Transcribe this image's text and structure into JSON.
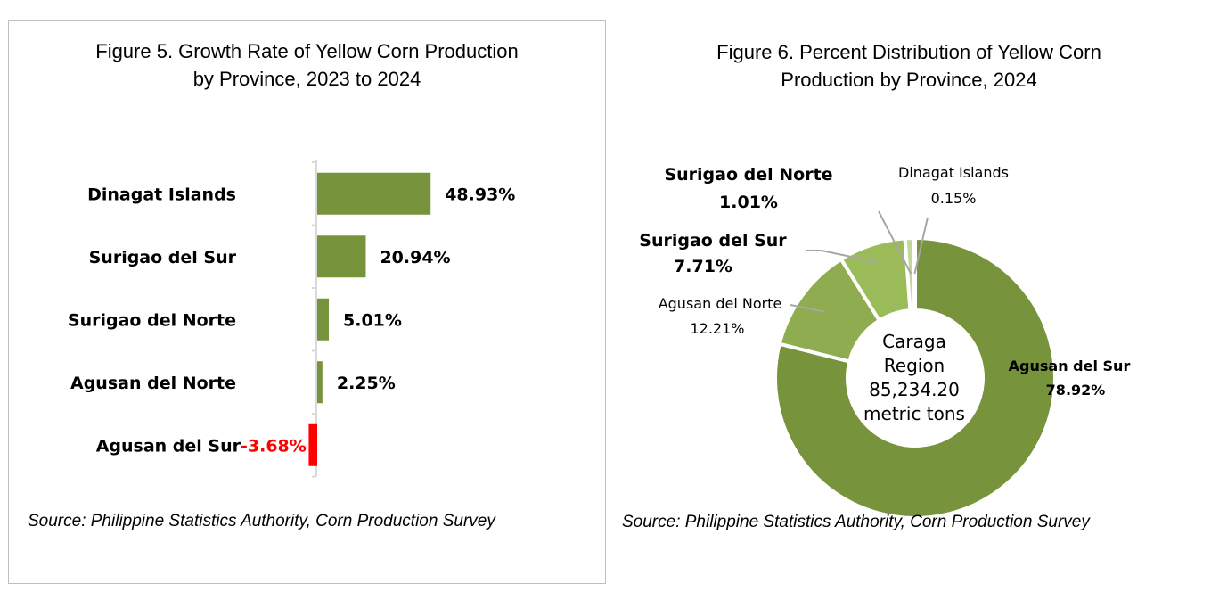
{
  "chart_data": [
    {
      "type": "bar",
      "orientation": "horizontal",
      "title_lines": [
        "Figure 5. Growth Rate of Yellow Corn Production",
        "by Province, 2023 to 2024"
      ],
      "categories": [
        "Dinagat Islands",
        "Surigao del Sur",
        "Surigao del Norte",
        "Agusan del Norte",
        "Agusan del Sur"
      ],
      "values": [
        48.93,
        20.94,
        5.01,
        2.25,
        -3.68
      ],
      "value_labels": [
        "48.93%",
        "20.94%",
        "5.01%",
        "2.25%",
        "-3.68%"
      ],
      "colors": {
        "positive": "#77933c",
        "negative": "#ff0000",
        "axis": "#d9d9d9"
      },
      "source": "Source: Philippine Statistics Authority, Corn Production Survey"
    },
    {
      "type": "pie",
      "style": "donut",
      "title_lines": [
        "Figure 6. Percent Distribution of Yellow Corn",
        "Production by Province, 2024"
      ],
      "slices": [
        {
          "name": "Agusan del Sur",
          "value": 78.92,
          "label": "78.92%",
          "color": "#77933c"
        },
        {
          "name": "Agusan del Norte",
          "value": 12.21,
          "label": "12.21%",
          "color": "#8fac50"
        },
        {
          "name": "Surigao del Sur",
          "value": 7.71,
          "label": "7.71%",
          "color": "#9bbb59"
        },
        {
          "name": "Surigao del Norte",
          "value": 1.01,
          "label": "1.01%",
          "color": "#c3d69b"
        },
        {
          "name": "Dinagat Islands",
          "value": 0.15,
          "label": "0.15%",
          "color": "#d7e4bd"
        }
      ],
      "center_text": [
        "Caraga",
        "Region",
        "85,234.20",
        "metric tons"
      ],
      "source": "Source: Philippine Statistics Authority, Corn Production Survey"
    }
  ]
}
